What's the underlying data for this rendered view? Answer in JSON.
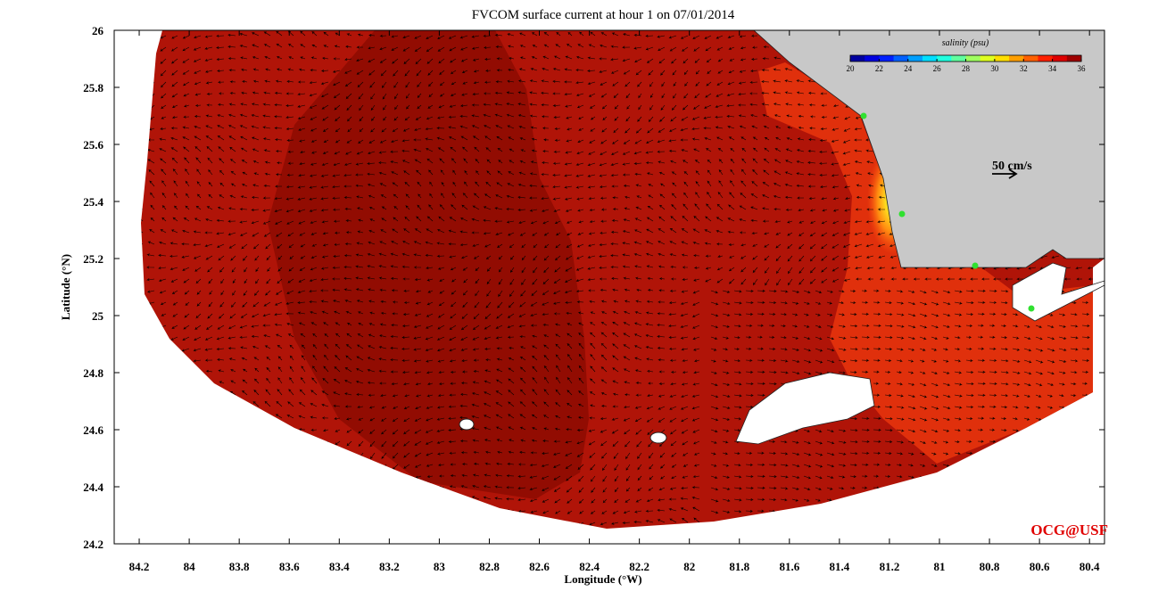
{
  "map": {
    "title": "FVCOM surface current at hour 1 on 07/01/2014",
    "x_label": "Longitude (°W)",
    "y_label": "Latitude (°N)",
    "xlim": [
      84.3,
      80.34
    ],
    "ylim": [
      24.2,
      26
    ],
    "xticks": [
      84.2,
      84,
      83.8,
      83.6,
      83.4,
      83.2,
      83,
      82.8,
      82.6,
      82.4,
      82.2,
      82,
      81.8,
      81.6,
      81.4,
      81.2,
      81,
      80.8,
      80.6,
      80.4
    ],
    "yticks": [
      24.2,
      24.4,
      24.6,
      24.8,
      25,
      25.2,
      25.4,
      25.6,
      25.8,
      26
    ],
    "colorbar": {
      "label": "salinity (psu)",
      "lim": [
        20,
        36
      ],
      "ticks": [
        20,
        22,
        24,
        26,
        28,
        30,
        32,
        34,
        36
      ]
    },
    "scale_label": "50 cm/s",
    "credit": "OCG@USF"
  }
}
